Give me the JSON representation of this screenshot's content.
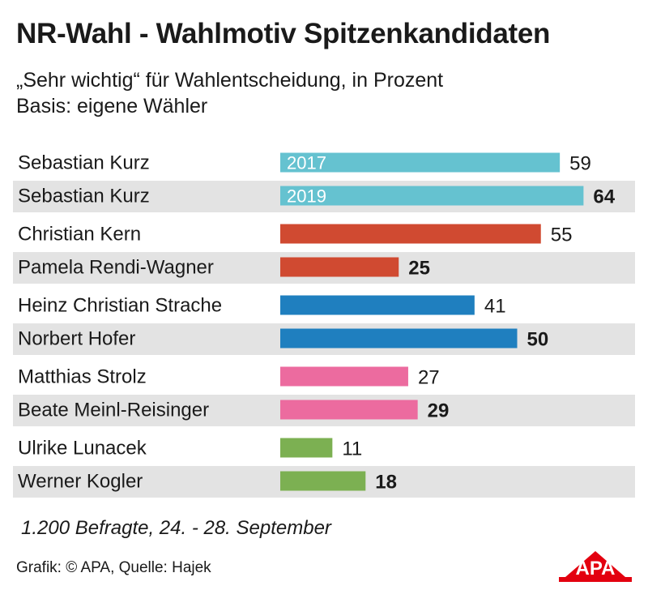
{
  "header": {
    "title": "NR-Wahl - Wahlmotiv Spitzenkandidaten",
    "subtitle_line1": "„Sehr wichtig“ für Wahlentscheidung, in Prozent",
    "subtitle_line2": "Basis: eigene Wähler"
  },
  "chart_data": {
    "type": "bar",
    "orientation": "horizontal",
    "xlim": [
      0,
      100
    ],
    "grid": false,
    "rows": [
      {
        "label": "Sebastian Kurz",
        "value": 59,
        "bar_label": "2017",
        "color": "#65c2d0",
        "bold": false,
        "group": 0
      },
      {
        "label": "Sebastian Kurz",
        "value": 64,
        "bar_label": "2019",
        "color": "#65c2d0",
        "bold": true,
        "group": 0
      },
      {
        "label": "Christian Kern",
        "value": 55,
        "bar_label": "",
        "color": "#d04a31",
        "bold": false,
        "group": 1
      },
      {
        "label": "Pamela Rendi-Wagner",
        "value": 25,
        "bar_label": "",
        "color": "#d04a31",
        "bold": true,
        "group": 1
      },
      {
        "label": "Heinz Christian Strache",
        "value": 41,
        "bar_label": "",
        "color": "#1f7fbf",
        "bold": false,
        "group": 2
      },
      {
        "label": "Norbert Hofer",
        "value": 50,
        "bar_label": "",
        "color": "#1f7fbf",
        "bold": true,
        "group": 2
      },
      {
        "label": "Matthias Strolz",
        "value": 27,
        "bar_label": "",
        "color": "#ec6b9f",
        "bold": false,
        "group": 3
      },
      {
        "label": "Beate Meinl-Reisinger",
        "value": 29,
        "bar_label": "",
        "color": "#ec6b9f",
        "bold": true,
        "group": 3
      },
      {
        "label": "Ulrike Lunacek",
        "value": 11,
        "bar_label": "",
        "color": "#7cb052",
        "bold": false,
        "group": 4
      },
      {
        "label": "Werner Kogler",
        "value": 18,
        "bar_label": "",
        "color": "#7cb052",
        "bold": true,
        "group": 4
      }
    ]
  },
  "colors": {
    "row_shading": "#e3e3e3",
    "text": "#1a1a1a",
    "logo_red": "#e3000f"
  },
  "footer": {
    "note": "1.200 Befragte, 24. - 28. September",
    "credit": "Grafik: © APA, Quelle: Hajek",
    "logo": "APA"
  }
}
